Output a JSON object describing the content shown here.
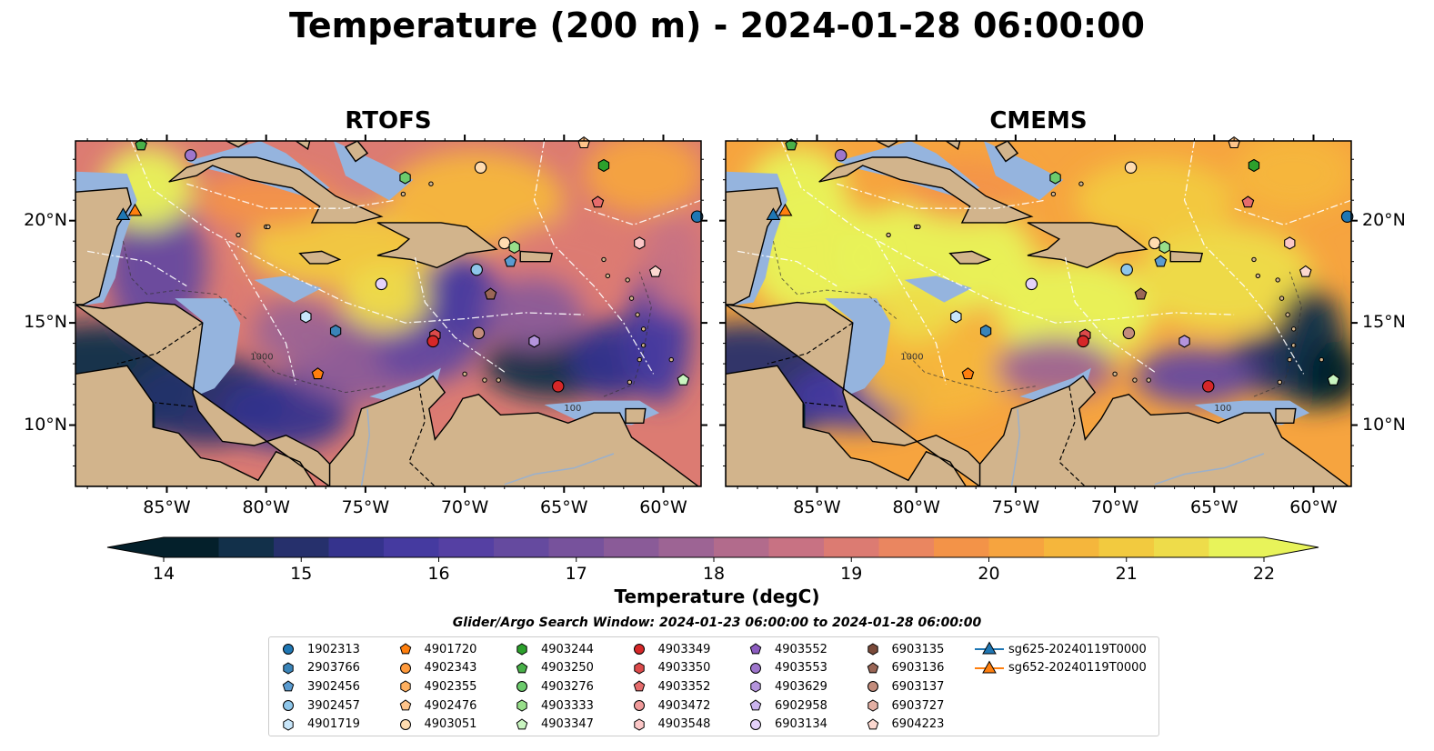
{
  "title": "Temperature (200 m) - 2024-01-28 06:00:00",
  "panels": [
    {
      "title": "RTOFS"
    },
    {
      "title": "CMEMS"
    }
  ],
  "lon_ticks": [
    "85°W",
    "80°W",
    "75°W",
    "70°W",
    "65°W",
    "60°W"
  ],
  "lat_ticks": [
    "20°N",
    "15°N",
    "10°N"
  ],
  "contour_labels": [
    "1000",
    "100"
  ],
  "colorbar": {
    "label": "Temperature (degC)",
    "ticks": [
      "14",
      "15",
      "16",
      "17",
      "18",
      "19",
      "20",
      "21",
      "22"
    ],
    "range": [
      14,
      22
    ],
    "colormap": "thermal",
    "extend": "both",
    "colors": [
      "#04202b",
      "#12304a",
      "#26306c",
      "#35338d",
      "#453aa0",
      "#5540a3",
      "#654a9f",
      "#77529c",
      "#8a5b98",
      "#9d6494",
      "#b26b8c",
      "#c87283",
      "#dc7b72",
      "#ea8660",
      "#f39348",
      "#f6a43f",
      "#f5b63c",
      "#f2ca3f",
      "#eedc4a",
      "#e8f35a"
    ]
  },
  "search_window": "Glider/Argo Search Window: 2024-01-23 06:00:00 to 2024-01-28 06:00:00",
  "legend": [
    {
      "label": "1902313",
      "marker": "circle",
      "color": "#1f77b4"
    },
    {
      "label": "2903766",
      "marker": "hexagon",
      "color": "#3a84b8"
    },
    {
      "label": "3902456",
      "marker": "pentagon",
      "color": "#5a9bd0"
    },
    {
      "label": "3902457",
      "marker": "circle",
      "color": "#8ec6ea"
    },
    {
      "label": "4901719",
      "marker": "hexagon",
      "color": "#c8e6fa"
    },
    {
      "label": "4901720",
      "marker": "pentagon",
      "color": "#ff7f0e"
    },
    {
      "label": "4902343",
      "marker": "circle",
      "color": "#ff9a3c"
    },
    {
      "label": "4902355",
      "marker": "hexagon",
      "color": "#ffb060"
    },
    {
      "label": "4902476",
      "marker": "pentagon",
      "color": "#ffc48a"
    },
    {
      "label": "4903051",
      "marker": "circle",
      "color": "#ffdcb0"
    },
    {
      "label": "4903244",
      "marker": "hexagon",
      "color": "#2ca02c"
    },
    {
      "label": "4903250",
      "marker": "pentagon",
      "color": "#48b048"
    },
    {
      "label": "4903276",
      "marker": "circle",
      "color": "#6ccb6c"
    },
    {
      "label": "4903333",
      "marker": "hexagon",
      "color": "#98df8a"
    },
    {
      "label": "4903347",
      "marker": "pentagon",
      "color": "#c9f5c0"
    },
    {
      "label": "4903349",
      "marker": "circle",
      "color": "#d62728"
    },
    {
      "label": "4903350",
      "marker": "hexagon",
      "color": "#dc4a4a"
    },
    {
      "label": "4903352",
      "marker": "pentagon",
      "color": "#e66c6c"
    },
    {
      "label": "4903472",
      "marker": "circle",
      "color": "#f09a9a"
    },
    {
      "label": "4903548",
      "marker": "hexagon",
      "color": "#fcc7c7"
    },
    {
      "label": "4903552",
      "marker": "pentagon",
      "color": "#8c5cc0"
    },
    {
      "label": "4903553",
      "marker": "circle",
      "color": "#9e76cc"
    },
    {
      "label": "4903629",
      "marker": "hexagon",
      "color": "#b494dc"
    },
    {
      "label": "6902958",
      "marker": "pentagon",
      "color": "#cbb4ee"
    },
    {
      "label": "6903134",
      "marker": "circle",
      "color": "#e4d2fa"
    },
    {
      "label": "6903135",
      "marker": "hexagon",
      "color": "#7a4a3a"
    },
    {
      "label": "6903136",
      "marker": "pentagon",
      "color": "#9a6656"
    },
    {
      "label": "6903137",
      "marker": "circle",
      "color": "#c38c7c"
    },
    {
      "label": "6903727",
      "marker": "hexagon",
      "color": "#e4b0a4"
    },
    {
      "label": "6904223",
      "marker": "pentagon",
      "color": "#fcd8d0"
    },
    {
      "label": "sg625-20240119T0000",
      "marker": "triangle",
      "color": "#1f77b4"
    },
    {
      "label": "sg652-20240119T0000",
      "marker": "triangle",
      "color": "#ff7f0e"
    }
  ],
  "floats": [
    {
      "lon": -83.8,
      "lat": 23.2,
      "color": "#9e76cc",
      "marker": "circle"
    },
    {
      "lon": -86.3,
      "lat": 23.7,
      "color": "#48b048",
      "marker": "pentagon"
    },
    {
      "lon": -73.0,
      "lat": 22.1,
      "color": "#6ccb6c",
      "marker": "hexagon"
    },
    {
      "lon": -69.2,
      "lat": 22.6,
      "color": "#ffdcb0",
      "marker": "circle"
    },
    {
      "lon": -63.0,
      "lat": 22.7,
      "color": "#2ca02c",
      "marker": "hexagon"
    },
    {
      "lon": -64.0,
      "lat": 23.8,
      "color": "#ffc48a",
      "marker": "pentagon"
    },
    {
      "lon": -63.3,
      "lat": 20.9,
      "color": "#e66c6c",
      "marker": "pentagon"
    },
    {
      "lon": -58.3,
      "lat": 20.2,
      "color": "#1f77b4",
      "marker": "circle"
    },
    {
      "lon": -61.2,
      "lat": 18.9,
      "color": "#fcc7c7",
      "marker": "hexagon"
    },
    {
      "lon": -60.4,
      "lat": 17.5,
      "color": "#fcd8d0",
      "marker": "pentagon"
    },
    {
      "lon": -68.0,
      "lat": 18.9,
      "color": "#ffdcb0",
      "marker": "circle"
    },
    {
      "lon": -67.5,
      "lat": 18.7,
      "color": "#98df8a",
      "marker": "hexagon"
    },
    {
      "lon": -67.7,
      "lat": 18.0,
      "color": "#5a9bd0",
      "marker": "pentagon"
    },
    {
      "lon": -69.4,
      "lat": 17.6,
      "color": "#8ec6ea",
      "marker": "circle"
    },
    {
      "lon": -74.2,
      "lat": 16.9,
      "color": "#e4d2fa",
      "marker": "circle"
    },
    {
      "lon": -68.7,
      "lat": 16.4,
      "color": "#9a6656",
      "marker": "pentagon"
    },
    {
      "lon": -78.0,
      "lat": 15.3,
      "color": "#c8e6fa",
      "marker": "hexagon"
    },
    {
      "lon": -76.5,
      "lat": 14.6,
      "color": "#3a84b8",
      "marker": "hexagon"
    },
    {
      "lon": -71.5,
      "lat": 14.4,
      "color": "#dc4a4a",
      "marker": "hexagon"
    },
    {
      "lon": -71.6,
      "lat": 14.1,
      "color": "#d62728",
      "marker": "circle"
    },
    {
      "lon": -69.3,
      "lat": 14.5,
      "color": "#c38c7c",
      "marker": "circle"
    },
    {
      "lon": -66.5,
      "lat": 14.1,
      "color": "#b494dc",
      "marker": "hexagon"
    },
    {
      "lon": -77.4,
      "lat": 12.5,
      "color": "#ff7f0e",
      "marker": "pentagon"
    },
    {
      "lon": -65.3,
      "lat": 11.9,
      "color": "#d62728",
      "marker": "circle"
    },
    {
      "lon": -59.0,
      "lat": 12.2,
      "color": "#c9f5c0",
      "marker": "pentagon"
    },
    {
      "lon": -87.2,
      "lat": 20.3,
      "color": "#1f77b4",
      "marker": "triangle"
    },
    {
      "lon": -86.6,
      "lat": 20.5,
      "color": "#ff7f0e",
      "marker": "triangle"
    }
  ]
}
